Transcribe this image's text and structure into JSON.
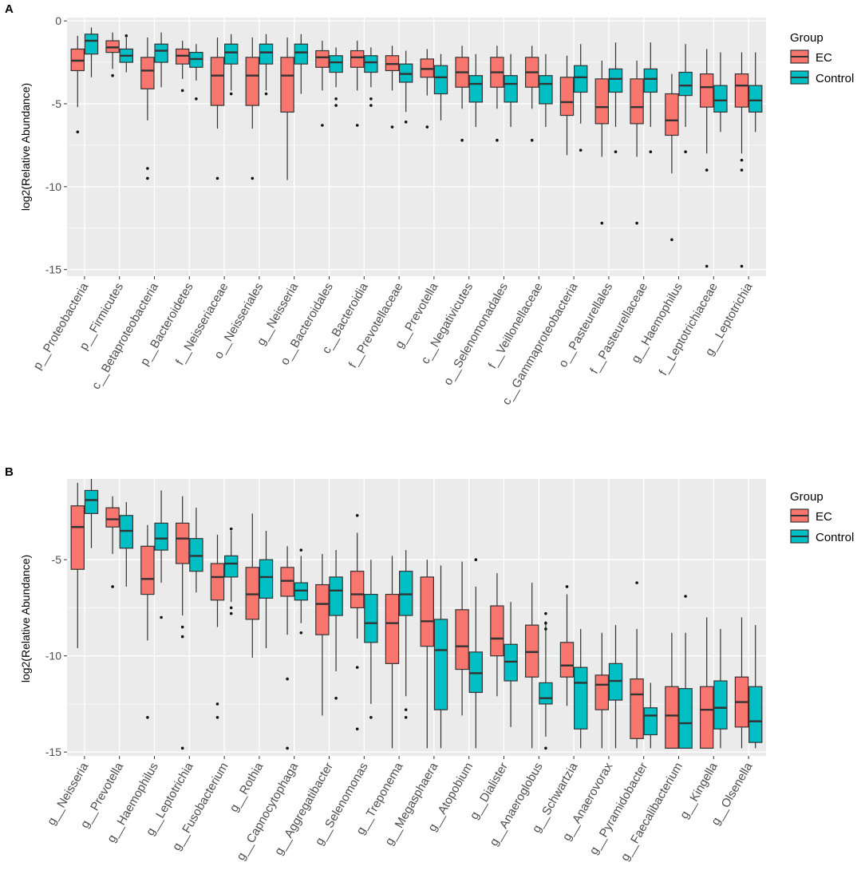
{
  "colors": {
    "ec": "#F8766D",
    "control": "#00BFC4",
    "panel_bg": "#EBEBEB",
    "grid": "#FFFFFF",
    "text": "#4D4D4D"
  },
  "chart_data": [
    {
      "panel_label": "A",
      "type": "boxplot",
      "ylabel": "log2(Relative Abundance)",
      "ylim": [
        -15.4,
        0.2
      ],
      "yticks": [
        0,
        -5,
        -10,
        -15
      ],
      "legend": {
        "title": "Group",
        "entries": [
          "EC",
          "Control"
        ],
        "position": "right"
      },
      "categories": [
        "p__Proteobacteria",
        "p__Firmicutes",
        "c__Betaproteobacteria",
        "p__Bacteroidetes",
        "f__Neisseriaceae",
        "o__Neisseriales",
        "g__Neisseria",
        "o__Bacteroidales",
        "c__Bacteroidia",
        "f__Prevotellaceae",
        "g__Prevotella",
        "c__Negativicutes",
        "o__Selenomonadales",
        "f__Veillonellaceae",
        "c__Gammaproteobacteria",
        "o__Pasteurellales",
        "f__Pasteurellaceae",
        "g__Haemophilus",
        "f__Leptotrichiaceae",
        "g__Leptotrichia"
      ],
      "series": [
        {
          "name": "EC",
          "boxes": [
            {
              "lo": -5.2,
              "q1": -3.0,
              "med": -2.4,
              "q3": -1.7,
              "hi": -0.9,
              "out": [
                -6.7
              ]
            },
            {
              "lo": -2.9,
              "q1": -1.9,
              "med": -1.6,
              "q3": -1.2,
              "hi": -0.7,
              "out": [
                -3.3
              ]
            },
            {
              "lo": -6.0,
              "q1": -4.1,
              "med": -3.0,
              "q3": -2.2,
              "hi": -1.0,
              "out": [
                -8.9,
                -9.5
              ]
            },
            {
              "lo": -3.5,
              "q1": -2.6,
              "med": -2.1,
              "q3": -1.7,
              "hi": -1.2,
              "out": [
                -4.2
              ]
            },
            {
              "lo": -6.5,
              "q1": -5.1,
              "med": -3.3,
              "q3": -2.2,
              "hi": -1.0,
              "out": [
                -9.5
              ]
            },
            {
              "lo": -6.5,
              "q1": -5.1,
              "med": -3.3,
              "q3": -2.2,
              "hi": -1.0,
              "out": [
                -9.5
              ]
            },
            {
              "lo": -9.6,
              "q1": -5.5,
              "med": -3.3,
              "q3": -2.2,
              "hi": -1.0,
              "out": []
            },
            {
              "lo": -4.2,
              "q1": -2.8,
              "med": -2.2,
              "q3": -1.8,
              "hi": -1.2,
              "out": [
                -6.3
              ]
            },
            {
              "lo": -4.2,
              "q1": -2.8,
              "med": -2.2,
              "q3": -1.8,
              "hi": -1.2,
              "out": [
                -6.3
              ]
            },
            {
              "lo": -4.2,
              "q1": -3.0,
              "med": -2.6,
              "q3": -2.1,
              "hi": -1.5,
              "out": [
                -6.4
              ]
            },
            {
              "lo": -4.5,
              "q1": -3.4,
              "med": -2.9,
              "q3": -2.3,
              "hi": -1.7,
              "out": [
                -6.4
              ]
            },
            {
              "lo": -5.3,
              "q1": -4.0,
              "med": -3.1,
              "q3": -2.2,
              "hi": -1.5,
              "out": [
                -7.2
              ]
            },
            {
              "lo": -5.3,
              "q1": -4.0,
              "med": -3.1,
              "q3": -2.2,
              "hi": -1.5,
              "out": [
                -7.2
              ]
            },
            {
              "lo": -5.3,
              "q1": -4.0,
              "med": -3.1,
              "q3": -2.2,
              "hi": -1.5,
              "out": [
                -7.2
              ]
            },
            {
              "lo": -8.1,
              "q1": -5.7,
              "med": -4.9,
              "q3": -3.4,
              "hi": -2.1,
              "out": []
            },
            {
              "lo": -8.2,
              "q1": -6.2,
              "med": -5.2,
              "q3": -3.5,
              "hi": -2.4,
              "out": [
                -12.2
              ]
            },
            {
              "lo": -8.2,
              "q1": -6.2,
              "med": -5.2,
              "q3": -3.5,
              "hi": -2.4,
              "out": [
                -12.2
              ]
            },
            {
              "lo": -9.2,
              "q1": -6.9,
              "med": -6.0,
              "q3": -4.4,
              "hi": -3.2,
              "out": [
                -13.2
              ]
            },
            {
              "lo": -8.0,
              "q1": -5.2,
              "med": -4.0,
              "q3": -3.2,
              "hi": -1.7,
              "out": [
                -9.0,
                -14.8
              ]
            },
            {
              "lo": -8.0,
              "q1": -5.2,
              "med": -3.9,
              "q3": -3.2,
              "hi": -1.9,
              "out": [
                -8.4,
                -9.0,
                -14.8
              ]
            }
          ]
        },
        {
          "name": "Control",
          "boxes": [
            {
              "lo": -3.4,
              "q1": -2.0,
              "med": -1.2,
              "q3": -0.8,
              "hi": -0.4,
              "out": []
            },
            {
              "lo": -3.1,
              "q1": -2.5,
              "med": -2.1,
              "q3": -1.7,
              "hi": -1.0,
              "out": [
                -0.9
              ]
            },
            {
              "lo": -4.0,
              "q1": -2.5,
              "med": -1.8,
              "q3": -1.4,
              "hi": -0.7,
              "out": []
            },
            {
              "lo": -3.6,
              "q1": -2.8,
              "med": -2.3,
              "q3": -1.9,
              "hi": -1.4,
              "out": [
                -4.7
              ]
            },
            {
              "lo": -4.2,
              "q1": -2.6,
              "med": -1.9,
              "q3": -1.4,
              "hi": -0.8,
              "out": [
                -4.4
              ]
            },
            {
              "lo": -4.2,
              "q1": -2.6,
              "med": -1.9,
              "q3": -1.4,
              "hi": -0.8,
              "out": [
                -4.4
              ]
            },
            {
              "lo": -4.4,
              "q1": -2.6,
              "med": -1.9,
              "q3": -1.4,
              "hi": -0.8,
              "out": []
            },
            {
              "lo": -4.0,
              "q1": -3.1,
              "med": -2.5,
              "q3": -2.1,
              "hi": -1.6,
              "out": [
                -4.7,
                -5.1
              ]
            },
            {
              "lo": -4.0,
              "q1": -3.1,
              "med": -2.5,
              "q3": -2.1,
              "hi": -1.6,
              "out": [
                -4.7,
                -5.1
              ]
            },
            {
              "lo": -5.5,
              "q1": -3.7,
              "med": -3.2,
              "q3": -2.6,
              "hi": -1.8,
              "out": [
                -6.1
              ]
            },
            {
              "lo": -6.0,
              "q1": -4.4,
              "med": -3.4,
              "q3": -2.7,
              "hi": -2.0,
              "out": []
            },
            {
              "lo": -6.4,
              "q1": -4.9,
              "med": -3.8,
              "q3": -3.3,
              "hi": -2.0,
              "out": []
            },
            {
              "lo": -6.4,
              "q1": -4.9,
              "med": -3.8,
              "q3": -3.3,
              "hi": -2.0,
              "out": []
            },
            {
              "lo": -6.4,
              "q1": -5.0,
              "med": -3.8,
              "q3": -3.3,
              "hi": -2.0,
              "out": []
            },
            {
              "lo": -6.2,
              "q1": -4.3,
              "med": -3.4,
              "q3": -2.7,
              "hi": -1.4,
              "out": [
                -7.8
              ]
            },
            {
              "lo": -6.4,
              "q1": -4.3,
              "med": -3.5,
              "q3": -2.9,
              "hi": -1.3,
              "out": [
                -7.9
              ]
            },
            {
              "lo": -6.4,
              "q1": -4.3,
              "med": -3.5,
              "q3": -2.9,
              "hi": -1.3,
              "out": [
                -7.9
              ]
            },
            {
              "lo": -6.4,
              "q1": -4.5,
              "med": -3.9,
              "q3": -3.1,
              "hi": -1.4,
              "out": [
                -7.9
              ]
            },
            {
              "lo": -6.7,
              "q1": -5.5,
              "med": -4.8,
              "q3": -3.9,
              "hi": -1.9,
              "out": []
            },
            {
              "lo": -6.7,
              "q1": -5.5,
              "med": -4.8,
              "q3": -3.9,
              "hi": -1.9,
              "out": []
            }
          ]
        }
      ]
    },
    {
      "panel_label": "B",
      "type": "boxplot",
      "ylabel": "log2(Relative Abundance)",
      "ylim": [
        -15.2,
        -0.8
      ],
      "yticks": [
        -5,
        -10,
        -15
      ],
      "legend": {
        "title": "Group",
        "entries": [
          "EC",
          "Control"
        ],
        "position": "right"
      },
      "categories": [
        "g__Neisseria",
        "g__Prevotella",
        "g__Haemophilus",
        "g__Leptotrichia",
        "g__Fusobacterium",
        "g__Rothia",
        "g__Capnocytophaga",
        "g__Aggregatibacter",
        "g__Selenomonas",
        "g__Treponema",
        "g__Megasphaera",
        "g__Atopobium",
        "g__Dialister",
        "g__Anaeroglobus",
        "g__Schwartzia",
        "g__Anaerovorax",
        "g__Pyramidobacter",
        "g__Faecalibacterium",
        "g__Kingella",
        "g__Olsenella"
      ],
      "series": [
        {
          "name": "EC",
          "boxes": [
            {
              "lo": -9.6,
              "q1": -5.5,
              "med": -3.3,
              "q3": -2.2,
              "hi": -1.0,
              "out": []
            },
            {
              "lo": -4.7,
              "q1": -3.3,
              "med": -2.9,
              "q3": -2.3,
              "hi": -1.7,
              "out": [
                -6.4
              ]
            },
            {
              "lo": -9.2,
              "q1": -6.8,
              "med": -6.0,
              "q3": -4.3,
              "hi": -3.2,
              "out": [
                -13.2
              ]
            },
            {
              "lo": -7.9,
              "q1": -5.2,
              "med": -3.9,
              "q3": -3.1,
              "hi": -1.7,
              "out": [
                -8.5,
                -9.0,
                -14.8
              ]
            },
            {
              "lo": -8.5,
              "q1": -7.1,
              "med": -5.9,
              "q3": -5.2,
              "hi": -3.7,
              "out": [
                -12.5,
                -13.2
              ]
            },
            {
              "lo": -10.1,
              "q1": -8.1,
              "med": -6.8,
              "q3": -5.4,
              "hi": -2.6,
              "out": []
            },
            {
              "lo": -8.9,
              "q1": -6.9,
              "med": -6.1,
              "q3": -5.4,
              "hi": -4.3,
              "out": [
                -11.2,
                -14.8
              ]
            },
            {
              "lo": -13.1,
              "q1": -8.9,
              "med": -7.3,
              "q3": -6.3,
              "hi": -4.7,
              "out": []
            },
            {
              "lo": -9.1,
              "q1": -7.5,
              "med": -6.8,
              "q3": -5.6,
              "hi": -3.6,
              "out": [
                -2.7,
                -10.6,
                -13.8
              ]
            },
            {
              "lo": -14.8,
              "q1": -10.4,
              "med": -8.3,
              "q3": -6.8,
              "hi": -4.8,
              "out": []
            },
            {
              "lo": -14.8,
              "q1": -9.5,
              "med": -8.2,
              "q3": -5.9,
              "hi": -5.0,
              "out": []
            },
            {
              "lo": -13.1,
              "q1": -10.7,
              "med": -9.5,
              "q3": -7.6,
              "hi": -5.1,
              "out": []
            },
            {
              "lo": -12.1,
              "q1": -10.0,
              "med": -9.1,
              "q3": -7.4,
              "hi": -5.7,
              "out": []
            },
            {
              "lo": -14.8,
              "q1": -11.1,
              "med": -9.8,
              "q3": -8.4,
              "hi": -6.2,
              "out": []
            },
            {
              "lo": -12.6,
              "q1": -11.1,
              "med": -10.5,
              "q3": -9.3,
              "hi": -6.8,
              "out": [
                -6.4
              ]
            },
            {
              "lo": -14.8,
              "q1": -12.8,
              "med": -11.5,
              "q3": -11.0,
              "hi": -8.8,
              "out": []
            },
            {
              "lo": -14.8,
              "q1": -14.3,
              "med": -12.0,
              "q3": -11.2,
              "hi": -8.6,
              "out": [
                -6.2
              ]
            },
            {
              "lo": -14.8,
              "q1": -14.8,
              "med": -13.1,
              "q3": -11.6,
              "hi": -8.8,
              "out": []
            },
            {
              "lo": -14.8,
              "q1": -14.8,
              "med": -12.8,
              "q3": -11.6,
              "hi": -8.0,
              "out": []
            },
            {
              "lo": -14.8,
              "q1": -13.7,
              "med": -12.4,
              "q3": -11.1,
              "hi": -8.0,
              "out": []
            }
          ]
        },
        {
          "name": "Control",
          "boxes": [
            {
              "lo": -4.4,
              "q1": -2.6,
              "med": -1.9,
              "q3": -1.4,
              "hi": -0.8,
              "out": []
            },
            {
              "lo": -6.4,
              "q1": -4.4,
              "med": -3.5,
              "q3": -2.7,
              "hi": -2.0,
              "out": []
            },
            {
              "lo": -6.2,
              "q1": -4.5,
              "med": -3.9,
              "q3": -3.1,
              "hi": -1.4,
              "out": [
                -8.0
              ]
            },
            {
              "lo": -6.7,
              "q1": -5.6,
              "med": -4.8,
              "q3": -3.9,
              "hi": -2.3,
              "out": []
            },
            {
              "lo": -7.2,
              "q1": -5.9,
              "med": -5.2,
              "q3": -4.8,
              "hi": -3.5,
              "out": [
                -3.4,
                -7.5,
                -7.8
              ]
            },
            {
              "lo": -9.6,
              "q1": -7.0,
              "med": -5.9,
              "q3": -5.0,
              "hi": -3.5,
              "out": []
            },
            {
              "lo": -8.3,
              "q1": -7.1,
              "med": -6.6,
              "q3": -6.2,
              "hi": -4.8,
              "out": [
                -4.5,
                -8.8
              ]
            },
            {
              "lo": -10.8,
              "q1": -7.9,
              "med": -6.6,
              "q3": -5.9,
              "hi": -4.5,
              "out": [
                -12.2
              ]
            },
            {
              "lo": -12.5,
              "q1": -9.3,
              "med": -8.3,
              "q3": -6.8,
              "hi": -5.0,
              "out": [
                -13.2
              ]
            },
            {
              "lo": -12.1,
              "q1": -7.9,
              "med": -6.8,
              "q3": -5.6,
              "hi": -4.5,
              "out": [
                -12.8,
                -13.2
              ]
            },
            {
              "lo": -14.8,
              "q1": -12.8,
              "med": -9.7,
              "q3": -8.1,
              "hi": -5.3,
              "out": []
            },
            {
              "lo": -14.8,
              "q1": -11.9,
              "med": -10.9,
              "q3": -9.8,
              "hi": -6.4,
              "out": [
                -5.0
              ]
            },
            {
              "lo": -13.7,
              "q1": -11.3,
              "med": -10.3,
              "q3": -9.4,
              "hi": -7.2,
              "out": []
            },
            {
              "lo": -14.2,
              "q1": -12.5,
              "med": -12.2,
              "q3": -11.4,
              "hi": -8.2,
              "out": [
                -7.8,
                -8.3,
                -8.6,
                -14.8
              ]
            },
            {
              "lo": -14.8,
              "q1": -13.8,
              "med": -11.4,
              "q3": -10.6,
              "hi": -8.6,
              "out": []
            },
            {
              "lo": -14.8,
              "q1": -12.3,
              "med": -11.3,
              "q3": -10.4,
              "hi": -8.4,
              "out": []
            },
            {
              "lo": -14.8,
              "q1": -14.1,
              "med": -13.1,
              "q3": -12.7,
              "hi": -11.4,
              "out": []
            },
            {
              "lo": -14.8,
              "q1": -14.8,
              "med": -13.5,
              "q3": -11.7,
              "hi": -8.8,
              "out": [
                -6.9
              ]
            },
            {
              "lo": -14.8,
              "q1": -13.8,
              "med": -12.7,
              "q3": -11.3,
              "hi": -8.6,
              "out": []
            },
            {
              "lo": -14.8,
              "q1": -14.5,
              "med": -13.4,
              "q3": -11.6,
              "hi": -8.4,
              "out": []
            }
          ]
        }
      ]
    }
  ]
}
